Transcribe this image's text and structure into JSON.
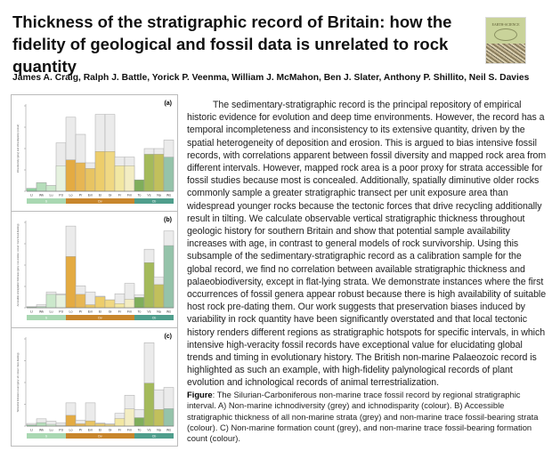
{
  "title": "Thickness of the stratigraphic record of Britain: how the fidelity of geological and fossil data is unrelated to rock quantity",
  "cover": {
    "journal": "EARTH-SCIENCE",
    "subtitle": "REVIEWS"
  },
  "authors": "James A. Craig, Ralph J. Battle, Yorick P. Veenma, William J. McMahon, Ben J. Slater, Anthony P. Shillito, Neil S. Davies",
  "abstract": "The sedimentary-stratigraphic record is the principal repository of empirical historic evidence for evolution and deep time environments. However, the record has a temporal incompleteness and inconsistency to its extensive quantity, driven by the spatial heterogeneity of deposition and erosion. This is argued to bias intensive fossil records, with correlations apparent between fossil diversity and mapped rock area from different intervals. However, mapped rock area is a poor proxy for strata accessible for fossil studies because most is concealed. Additionally, spatially diminutive older rocks commonly sample a greater stratigraphic transect per unit exposure area than widespread younger rocks because the tectonic forces that drive recycling additionally result in tilting. We calculate observable vertical stratigraphic thickness throughout geologic history for southern Britain and show that potential sample availability increases with age, in contrast to general models of rock survivorship. Using this subsample of the sedimentary-stratigraphic record as a calibration sample for the global record, we find no correlation between available stratigraphic thickness and palaeobiodiversity, except in flat-lying strata. We demonstrate instances where the first occurrences of fossil genera appear robust because there is high availability of suitable host rock pre-dating them. Our work suggests that preservation biases induced by variability in rock quantity have been significantly overstated and that local tectonic history renders different regions as stratigraphic hotspots for specific intervals, in which intensive high-veracity fossil records have exceptional value for elucidating global trends and timing in evolutionary history. The British non-marine Palaeozoic record is highlighted as such an example, with high-fidelity palynological records of plant evolution and ichnological records of animal terrestrialization.",
  "caption": {
    "label": "Figure",
    "text": ": The Silurian-Carboniferous non-marine trace fossil record by regional stratigraphic interval. A) Non-marine ichnodiversity (grey) and ichnodisparity (colour). B) Accessible stratigraphic thickness of all non-marine strata (grey) and non-marine trace fossil-bearing strata (colour). C) Non-marine formation count (grey), and non-marine trace fossil-bearing formation count (colour)."
  },
  "chart_data": [
    {
      "type": "bar",
      "panel_label": "(a)",
      "ylabel": "Ichnodiversity (grey) and ichnodisparity (colour)",
      "ylim": [
        0,
        30
      ],
      "categories": [
        "Ll",
        "Wk",
        "Lu",
        "Pd",
        "Lo",
        "Pr",
        "Em",
        "Ei",
        "Gi",
        "Fr",
        "Fm",
        "To",
        "Vs",
        "Na",
        "Ws"
      ],
      "series": [
        {
          "name": "grey",
          "values": [
            1,
            3,
            2,
            17,
            26,
            20,
            10,
            27,
            27,
            12,
            12,
            4,
            15,
            15,
            18
          ]
        },
        {
          "name": "colour",
          "values": [
            1,
            3,
            2,
            9,
            11,
            10,
            8,
            14,
            14,
            9,
            9,
            4,
            13,
            13,
            12
          ]
        }
      ]
    },
    {
      "type": "bar",
      "panel_label": "(b)",
      "ylabel": "Accessible stratigraphic thickness (grey: non-marine; colour: trace fossil-bearing)",
      "ylim": [
        0,
        7
      ],
      "categories": [
        "Ll",
        "Wk",
        "Lu",
        "Pd",
        "Lo",
        "Pr",
        "Em",
        "Ei",
        "Gi",
        "Fr",
        "Fm",
        "To",
        "Vs",
        "Na",
        "Ws"
      ],
      "series": [
        {
          "name": "grey",
          "values": [
            0.1,
            0.25,
            1.3,
            1.15,
            6.7,
            1.8,
            1.3,
            0.95,
            0.65,
            1.15,
            2.0,
            1.05,
            4.8,
            2.5,
            6.3
          ]
        },
        {
          "name": "colour",
          "values": [
            0.05,
            0.1,
            1.1,
            1.05,
            4.2,
            1.1,
            0.25,
            0.9,
            0.65,
            0.35,
            0.7,
            0.85,
            3.7,
            1.9,
            5.1
          ]
        }
      ]
    },
    {
      "type": "bar",
      "panel_label": "(c)",
      "ylabel": "Terrestrial formation count (grey: all; colour: trace-bearing)",
      "ylim": [
        0,
        30
      ],
      "categories": [
        "Ll",
        "Wk",
        "Lu",
        "Pd",
        "Lo",
        "Pr",
        "Em",
        "Ei",
        "Gi",
        "Fr",
        "Fm",
        "To",
        "Vs",
        "Na",
        "Ws"
      ],
      "series": [
        {
          "name": "grey",
          "values": [
            0.9,
            2.5,
            1.7,
            1.1,
            8,
            2,
            8,
            1.1,
            0.8,
            4.4,
            10.6,
            5.7,
            28.7,
            12.5,
            13.3
          ]
        },
        {
          "name": "colour",
          "values": [
            0.4,
            1.2,
            0.6,
            0.3,
            3.7,
            0.8,
            1.8,
            0.8,
            0.6,
            2.6,
            5.9,
            2.9,
            14.8,
            5.7,
            6.0
          ]
        }
      ]
    }
  ],
  "periods": [
    {
      "label": "S",
      "span": 4,
      "color": "#a9d8b2"
    },
    {
      "label": "Dv",
      "span": 7,
      "color": "#c8862c"
    },
    {
      "label": "Cb",
      "span": 4,
      "color": "#4f9e8c"
    }
  ],
  "bar_colors": [
    "#8fcf9f",
    "#b5ddba",
    "#cbe8cb",
    "#e6f2df",
    "#e4ab42",
    "#e7b653",
    "#e8c462",
    "#edcd6b",
    "#f0d882",
    "#f2e7a2",
    "#f3edc3",
    "#7fae5b",
    "#a4ba5b",
    "#c1c05c",
    "#95c3aa"
  ],
  "grey_color": "#ebebeb"
}
